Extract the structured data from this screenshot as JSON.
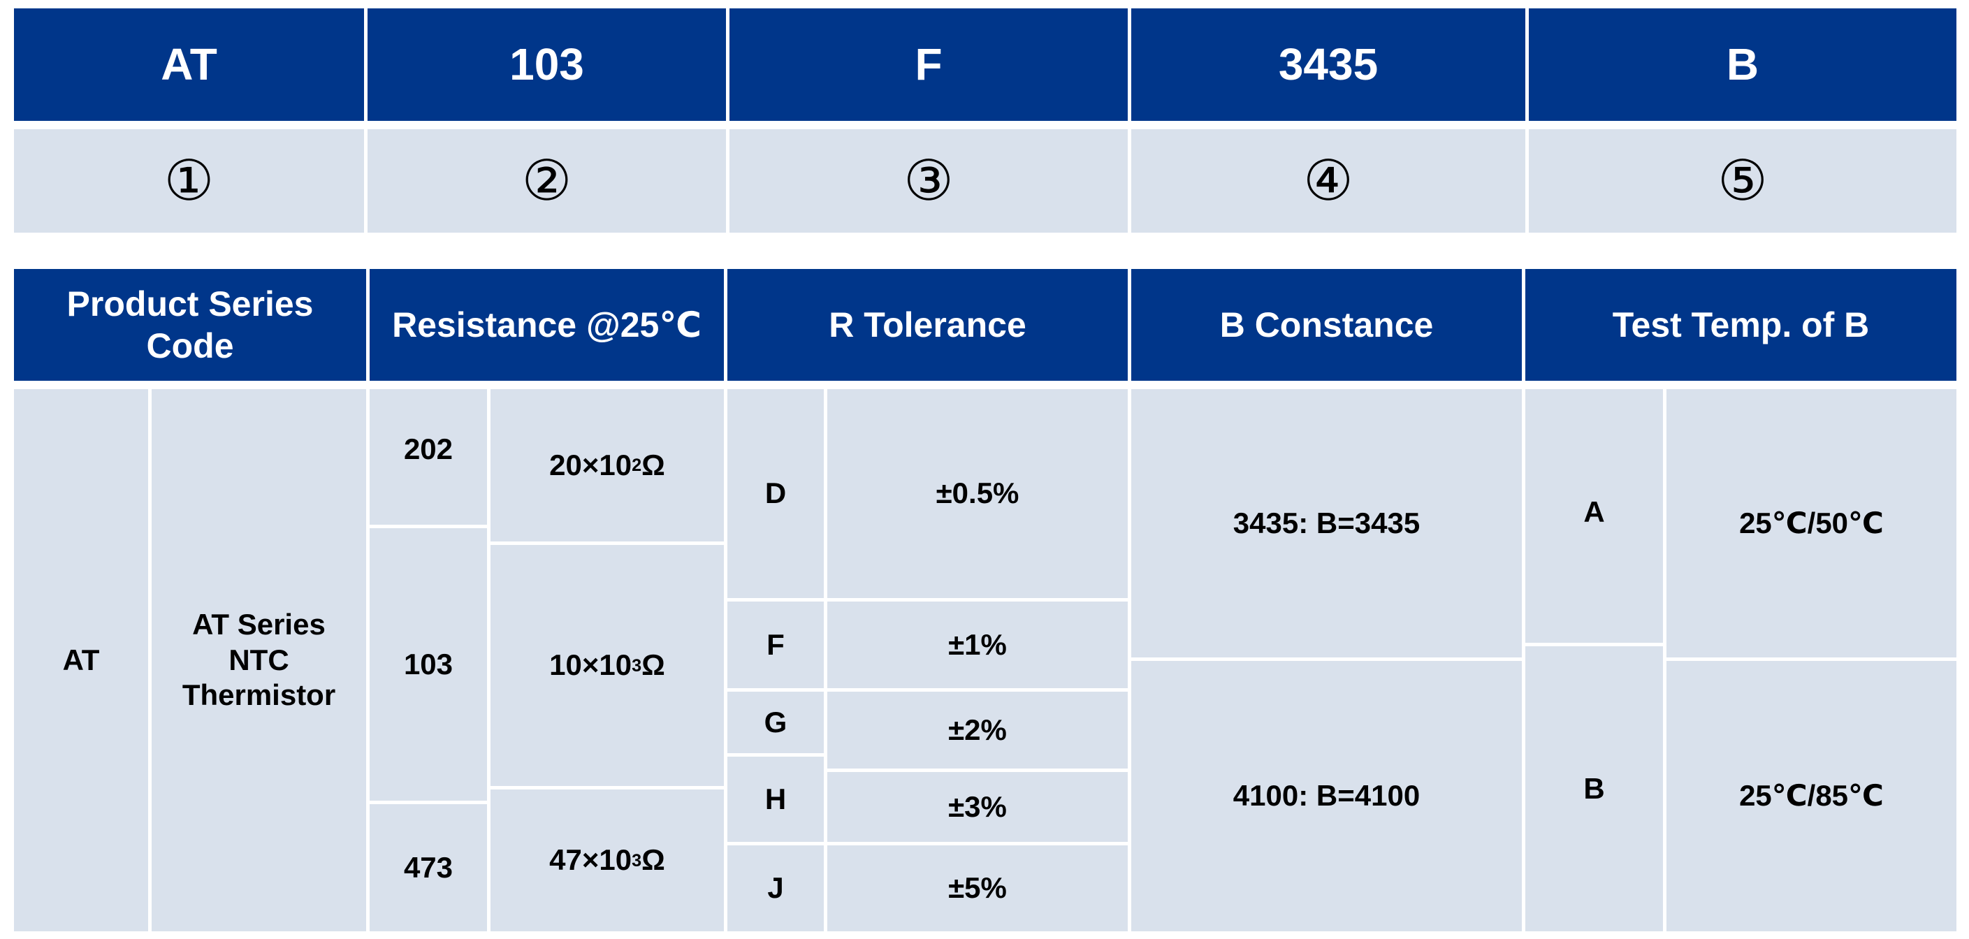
{
  "code_row": [
    "AT",
    "103",
    "F",
    "3435",
    "B"
  ],
  "index_row": [
    "①",
    "②",
    "③",
    "④",
    "⑤"
  ],
  "headers": [
    "Product Series Code",
    "Resistance @25℃",
    "R Tolerance",
    "B Constance",
    "Test Temp. of B"
  ],
  "series": {
    "code": "AT",
    "description_lines": [
      "AT Series",
      "NTC",
      "Thermistor"
    ]
  },
  "resistance": [
    {
      "code": "202",
      "mant": "20×10",
      "exp": "2",
      "unit": "Ω"
    },
    {
      "code": "103",
      "mant": "10×10",
      "exp": "3",
      "unit": "Ω"
    },
    {
      "code": "473",
      "mant": "47×10",
      "exp": "3",
      "unit": "Ω"
    }
  ],
  "tolerance": [
    {
      "code": "D",
      "value": "±0.5%"
    },
    {
      "code": "F",
      "value": "±1%"
    },
    {
      "code": "G",
      "value": "±2%"
    },
    {
      "code": "H",
      "value": "±3%"
    },
    {
      "code": "J",
      "value": "±5%"
    }
  ],
  "b_constance": [
    "3435: B=3435",
    "4100: B=4100"
  ],
  "test_temp": [
    {
      "code": "A",
      "value": "25℃/50℃"
    },
    {
      "code": "B",
      "value": "25℃/85℃"
    }
  ]
}
